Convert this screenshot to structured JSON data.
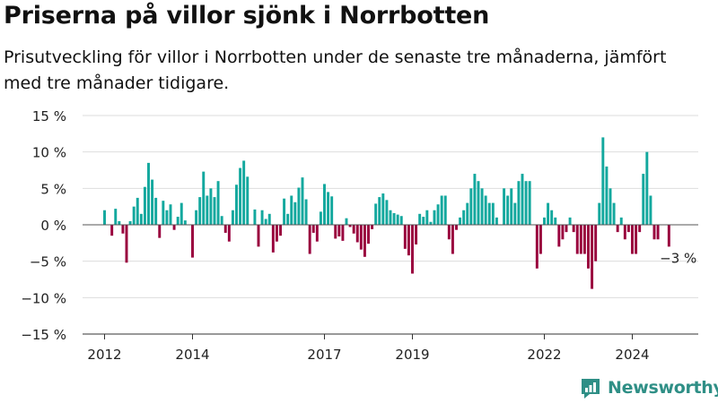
{
  "header": {
    "title": "Priserna på villor sjönk i Norrbotten",
    "subtitle": "Prisutveckling för villor i Norrbotten under de senaste tre månaderna, jämfört med tre månader tidigare."
  },
  "brand": {
    "name": "Newsworthy",
    "icon": "newsworthy-logo-icon",
    "color": "#2f8f86"
  },
  "colors": {
    "positive": "#13a89e",
    "negative": "#99003d",
    "grid": "#dddddd",
    "axis": "#333333"
  },
  "chart_data": {
    "type": "bar",
    "title": "Priserna på villor sjönk i Norrbotten",
    "ylim": [
      -15,
      15
    ],
    "yticks": [
      15,
      10,
      5,
      0,
      -5,
      -10,
      -15
    ],
    "ytick_labels": [
      "15 %",
      "10 %",
      "5 %",
      "0 %",
      "−5 %",
      "−10 %",
      "−15 %"
    ],
    "xlim": [
      2011.5,
      2025.5
    ],
    "xticks": [
      2012,
      2014,
      2017,
      2019,
      2022,
      2024
    ],
    "xtick_labels": [
      "2012",
      "2014",
      "2017",
      "2019",
      "2022",
      "2024"
    ],
    "grid": true,
    "annotation": {
      "text": "−3 %",
      "x": 2024.83,
      "y": -3
    },
    "start": [
      2012,
      0
    ],
    "values": [
      2,
      null,
      -1.5,
      2.2,
      0.5,
      -1.2,
      -5.2,
      0.5,
      2.5,
      3.7,
      1.5,
      5.2,
      8.5,
      6.2,
      3.7,
      -1.8,
      3.3,
      2,
      2.8,
      -0.7,
      1.1,
      3,
      0.6,
      null,
      -4.5,
      2,
      3.8,
      7.3,
      4,
      5,
      3.8,
      6,
      1.2,
      -1.1,
      -2.3,
      2,
      5.5,
      7.8,
      8.8,
      6.6,
      null,
      2.1,
      -3,
      2,
      0.8,
      1.5,
      -3.8,
      -2.3,
      -1.5,
      3.6,
      1.5,
      4,
      3.1,
      5.1,
      6.5,
      3.5,
      -4,
      -1.1,
      -2.3,
      1.8,
      5.6,
      4.5,
      3.9,
      -1.9,
      -1.6,
      -2.2,
      0.9,
      -0.3,
      -1.2,
      -2.4,
      -3.4,
      -4.4,
      -2.6,
      -0.6,
      2.9,
      3.8,
      4.3,
      3.4,
      2,
      1.6,
      1.4,
      1.2,
      -3.3,
      -4.2,
      -6.7,
      -2.7,
      1.5,
      1.1,
      2,
      0.4,
      2,
      2.8,
      4,
      4,
      -2,
      -4,
      -0.7,
      1,
      2,
      3,
      5,
      7,
      6,
      5,
      4,
      3,
      3,
      1,
      null,
      5,
      4,
      5,
      3,
      6,
      7,
      6,
      6,
      null,
      -6,
      -4,
      1,
      3,
      2,
      1,
      -3,
      -2,
      -1,
      1,
      -1,
      -4,
      -4,
      -4,
      -6,
      -8.8,
      -5,
      3,
      12,
      8,
      5,
      3,
      -1,
      1,
      -2,
      -1,
      -4,
      -4,
      -1,
      7,
      10,
      4,
      -2,
      -2,
      null,
      null,
      -3
    ]
  }
}
